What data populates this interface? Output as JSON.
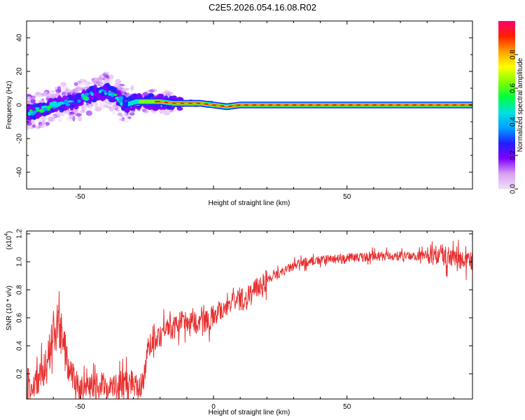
{
  "title": "C2E5.2026.054.16.08.R02",
  "chart_data": [
    {
      "type": "heatmap",
      "xlabel": "Height of straight line (km)",
      "ylabel": "Frequency (Hz)",
      "xlim": [
        -70,
        97
      ],
      "ylim": [
        -50,
        50
      ],
      "xticks": [
        -50,
        0,
        50
      ],
      "xtick_labels": [
        "-50",
        "",
        "50"
      ],
      "yticks": [
        -40,
        -20,
        0,
        20,
        40
      ],
      "ytick_labels": [
        "-40",
        "-20",
        "0",
        "20",
        "40"
      ],
      "ridge_points": [
        {
          "x": -68,
          "y": -4
        },
        {
          "x": -64,
          "y": -3
        },
        {
          "x": -60,
          "y": 0
        },
        {
          "x": -56,
          "y": 1
        },
        {
          "x": -52,
          "y": 2
        },
        {
          "x": -48,
          "y": 5
        },
        {
          "x": -44,
          "y": 7
        },
        {
          "x": -40,
          "y": 8
        },
        {
          "x": -37,
          "y": 6
        },
        {
          "x": -33,
          "y": 0
        },
        {
          "x": -29,
          "y": 2
        },
        {
          "x": -25,
          "y": 2
        },
        {
          "x": -20,
          "y": 2
        },
        {
          "x": -15,
          "y": 1
        },
        {
          "x": -10,
          "y": 1
        },
        {
          "x": -5,
          "y": 1
        },
        {
          "x": 0,
          "y": 0
        },
        {
          "x": 5,
          "y": -1
        },
        {
          "x": 10,
          "y": 0
        },
        {
          "x": 20,
          "y": 0
        },
        {
          "x": 40,
          "y": 0
        },
        {
          "x": 60,
          "y": 0
        },
        {
          "x": 80,
          "y": 0
        },
        {
          "x": 96,
          "y": 0
        }
      ],
      "colorbar": {
        "label": "Normalized spectral amplitude",
        "range": [
          0,
          1
        ],
        "ticks": [
          "0.0",
          "0.2",
          "0.4",
          "0.6",
          "0.8"
        ],
        "tick_values": [
          0,
          0.2,
          0.4,
          0.6,
          0.8
        ],
        "colors": [
          "#f0e0f8",
          "#d8a0f0",
          "#8000ff",
          "#2020ff",
          "#00a0ff",
          "#00e0e0",
          "#00ff40",
          "#80ff00",
          "#ffff00",
          "#ffa000",
          "#ff2000",
          "#ff0070"
        ]
      }
    },
    {
      "type": "line",
      "xlabel": "Height of straight line (km)",
      "ylabel": "SNR (10 * v/v)",
      "multiplier_label": "(x10",
      "multiplier_exp": "4",
      "multiplier_close": ")",
      "xlim": [
        -70,
        97
      ],
      "ylim": [
        0.02,
        1.22
      ],
      "xticks": [
        -50,
        0,
        50
      ],
      "xtick_labels": [
        "-50",
        "0",
        "50"
      ],
      "yticks": [
        0.2,
        0.4,
        0.6,
        0.8,
        1.0,
        1.2
      ],
      "ytick_labels": [
        "0.2",
        "0.4",
        "0.6",
        "0.8",
        "1.0",
        "1.2"
      ],
      "series_color": "#e83030",
      "series": [
        {
          "name": "SNR",
          "x": [
            -70,
            -68,
            -65,
            -62,
            -60,
            -58,
            -56,
            -54,
            -52,
            -50,
            -48,
            -45,
            -42,
            -38,
            -35,
            -32,
            -30,
            -28,
            -26,
            -25,
            -24,
            -22,
            -20,
            -18,
            -15,
            -12,
            -10,
            -8,
            -6,
            -4,
            -2,
            0,
            2,
            4,
            6,
            8,
            10,
            12,
            14,
            16,
            18,
            20,
            25,
            30,
            35,
            40,
            45,
            50,
            55,
            60,
            65,
            70,
            75,
            80,
            85,
            90,
            95,
            97
          ],
          "y": [
            0.07,
            0.1,
            0.18,
            0.3,
            0.45,
            0.55,
            0.4,
            0.22,
            0.15,
            0.1,
            0.08,
            0.1,
            0.12,
            0.1,
            0.12,
            0.15,
            0.14,
            0.12,
            0.15,
            0.35,
            0.4,
            0.45,
            0.48,
            0.55,
            0.52,
            0.58,
            0.56,
            0.6,
            0.55,
            0.58,
            0.58,
            0.62,
            0.65,
            0.68,
            0.72,
            0.7,
            0.74,
            0.72,
            0.78,
            0.8,
            0.85,
            0.87,
            0.92,
            0.97,
            1.0,
            1.01,
            1.02,
            1.03,
            1.03,
            1.04,
            1.04,
            1.04,
            1.04,
            1.05,
            1.05,
            1.02,
            1.0,
            1.01
          ]
        }
      ]
    }
  ]
}
